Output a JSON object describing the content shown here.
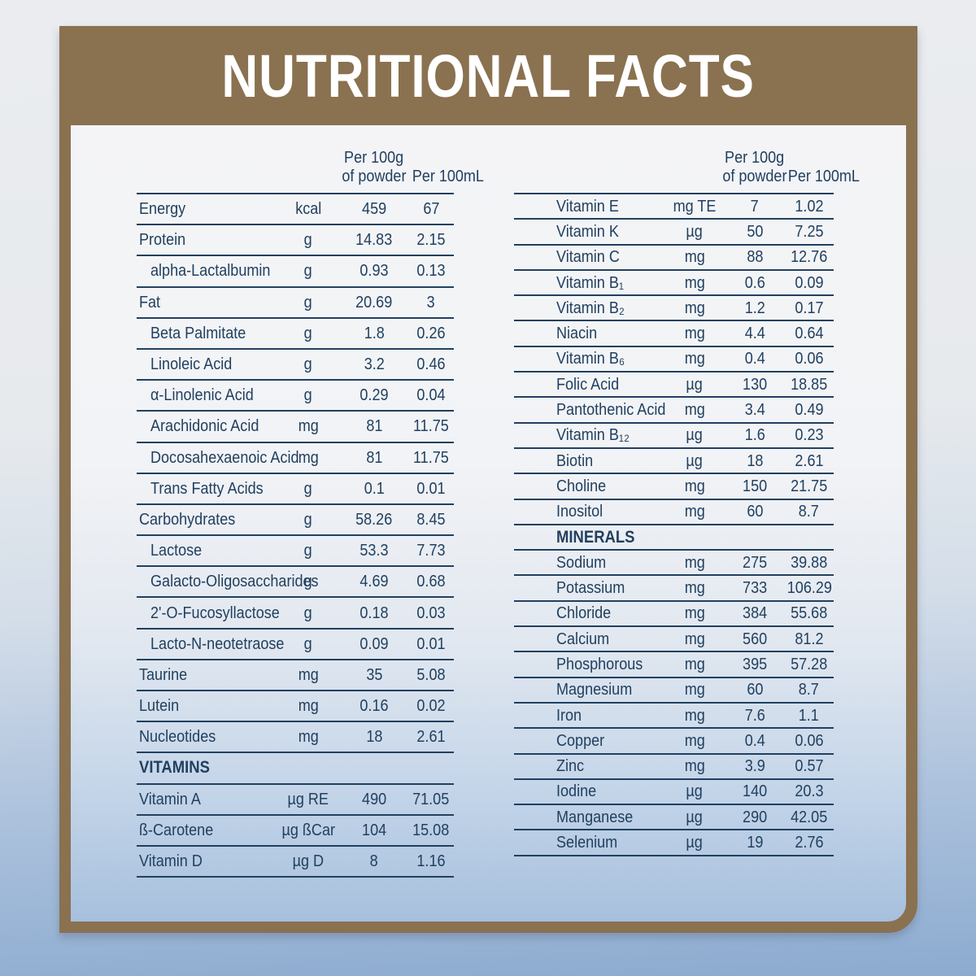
{
  "title": "NUTRITIONAL FACTS",
  "columns": {
    "per100g_line1": "Per 100g",
    "per100g_line2": "of powder",
    "per100ml": "Per 100mL"
  },
  "colors": {
    "banner_brown": "#8a7150",
    "text_navy": "#21405f",
    "background_top": "#eaecef",
    "background_bottom": "#8cabd0",
    "card_inner_bottom": "#a7c0dd",
    "title_text": "#ffffff"
  },
  "left_table": {
    "rows": [
      {
        "label": "Energy",
        "unit": "kcal",
        "per_100g": "459",
        "per_100ml": "67",
        "indent": false
      },
      {
        "label": "Protein",
        "unit": "g",
        "per_100g": "14.83",
        "per_100ml": "2.15",
        "indent": false
      },
      {
        "label": "alpha-Lactalbumin",
        "unit": "g",
        "per_100g": "0.93",
        "per_100ml": "0.13",
        "indent": true
      },
      {
        "label": "Fat",
        "unit": "g",
        "per_100g": "20.69",
        "per_100ml": "3",
        "indent": false
      },
      {
        "label": "Beta Palmitate",
        "unit": "g",
        "per_100g": "1.8",
        "per_100ml": "0.26",
        "indent": true
      },
      {
        "label": "Linoleic Acid",
        "unit": "g",
        "per_100g": "3.2",
        "per_100ml": "0.46",
        "indent": true
      },
      {
        "label": "α-Linolenic Acid",
        "unit": "g",
        "per_100g": "0.29",
        "per_100ml": "0.04",
        "indent": true
      },
      {
        "label": "Arachidonic Acid",
        "unit": "mg",
        "per_100g": "81",
        "per_100ml": "11.75",
        "indent": true
      },
      {
        "label": "Docosahexaenoic Acid",
        "unit": "mg",
        "per_100g": "81",
        "per_100ml": "11.75",
        "indent": true
      },
      {
        "label": "Trans Fatty Acids",
        "unit": "g",
        "per_100g": "0.1",
        "per_100ml": "0.01",
        "indent": true
      },
      {
        "label": "Carbohydrates",
        "unit": "g",
        "per_100g": "58.26",
        "per_100ml": "8.45",
        "indent": false
      },
      {
        "label": "Lactose",
        "unit": "g",
        "per_100g": "53.3",
        "per_100ml": "7.73",
        "indent": true
      },
      {
        "label": "Galacto-Oligosaccharides",
        "unit": "g",
        "per_100g": "4.69",
        "per_100ml": "0.68",
        "indent": true
      },
      {
        "label": "2'-O-Fucosyllactose",
        "unit": "g",
        "per_100g": "0.18",
        "per_100ml": "0.03",
        "indent": true
      },
      {
        "label": "Lacto-N-neotetraose",
        "unit": "g",
        "per_100g": "0.09",
        "per_100ml": "0.01",
        "indent": true
      },
      {
        "label": "Taurine",
        "unit": "mg",
        "per_100g": "35",
        "per_100ml": "5.08",
        "indent": false
      },
      {
        "label": "Lutein",
        "unit": "mg",
        "per_100g": "0.16",
        "per_100ml": "0.02",
        "indent": false
      },
      {
        "label": "Nucleotides",
        "unit": "mg",
        "per_100g": "18",
        "per_100ml": "2.61",
        "indent": false
      },
      {
        "section": "VITAMINS"
      },
      {
        "label": "Vitamin A",
        "unit": "µg RE",
        "per_100g": "490",
        "per_100ml": "71.05",
        "indent": false
      },
      {
        "label": "ß-Carotene",
        "unit": "µg ßCar",
        "per_100g": "104",
        "per_100ml": "15.08",
        "indent": false
      },
      {
        "label": "Vitamin D",
        "unit": "µg D",
        "per_100g": "8",
        "per_100ml": "1.16",
        "indent": false
      }
    ]
  },
  "right_table": {
    "rows": [
      {
        "label": "Vitamin E",
        "unit": "mg TE",
        "per_100g": "7",
        "per_100ml": "1.02"
      },
      {
        "label": "Vitamin K",
        "unit": "µg",
        "per_100g": "50",
        "per_100ml": "7.25"
      },
      {
        "label": "Vitamin C",
        "unit": "mg",
        "per_100g": "88",
        "per_100ml": "12.76"
      },
      {
        "label": "Vitamin B₁",
        "unit": "mg",
        "per_100g": "0.6",
        "per_100ml": "0.09"
      },
      {
        "label": "Vitamin B₂",
        "unit": "mg",
        "per_100g": "1.2",
        "per_100ml": "0.17"
      },
      {
        "label": "Niacin",
        "unit": "mg",
        "per_100g": "4.4",
        "per_100ml": "0.64"
      },
      {
        "label": "Vitamin B₆",
        "unit": "mg",
        "per_100g": "0.4",
        "per_100ml": "0.06"
      },
      {
        "label": "Folic Acid",
        "unit": "µg",
        "per_100g": "130",
        "per_100ml": "18.85"
      },
      {
        "label": "Pantothenic Acid",
        "unit": "mg",
        "per_100g": "3.4",
        "per_100ml": "0.49"
      },
      {
        "label": "Vitamin B₁₂",
        "unit": "µg",
        "per_100g": "1.6",
        "per_100ml": "0.23"
      },
      {
        "label": "Biotin",
        "unit": "µg",
        "per_100g": "18",
        "per_100ml": "2.61"
      },
      {
        "label": "Choline",
        "unit": "mg",
        "per_100g": "150",
        "per_100ml": "21.75"
      },
      {
        "label": "Inositol",
        "unit": "mg",
        "per_100g": "60",
        "per_100ml": "8.7"
      },
      {
        "section": "MINERALS"
      },
      {
        "label": "Sodium",
        "unit": "mg",
        "per_100g": "275",
        "per_100ml": "39.88"
      },
      {
        "label": "Potassium",
        "unit": "mg",
        "per_100g": "733",
        "per_100ml": "106.29"
      },
      {
        "label": "Chloride",
        "unit": "mg",
        "per_100g": "384",
        "per_100ml": "55.68"
      },
      {
        "label": "Calcium",
        "unit": "mg",
        "per_100g": "560",
        "per_100ml": "81.2"
      },
      {
        "label": "Phosphorous",
        "unit": "mg",
        "per_100g": "395",
        "per_100ml": "57.28"
      },
      {
        "label": "Magnesium",
        "unit": "mg",
        "per_100g": "60",
        "per_100ml": "8.7"
      },
      {
        "label": "Iron",
        "unit": "mg",
        "per_100g": "7.6",
        "per_100ml": "1.1"
      },
      {
        "label": "Copper",
        "unit": "mg",
        "per_100g": "0.4",
        "per_100ml": "0.06"
      },
      {
        "label": "Zinc",
        "unit": "mg",
        "per_100g": "3.9",
        "per_100ml": "0.57"
      },
      {
        "label": "Iodine",
        "unit": "µg",
        "per_100g": "140",
        "per_100ml": "20.3"
      },
      {
        "label": "Manganese",
        "unit": "µg",
        "per_100g": "290",
        "per_100ml": "42.05"
      },
      {
        "label": "Selenium",
        "unit": "µg",
        "per_100g": "19",
        "per_100ml": "2.76"
      }
    ]
  }
}
